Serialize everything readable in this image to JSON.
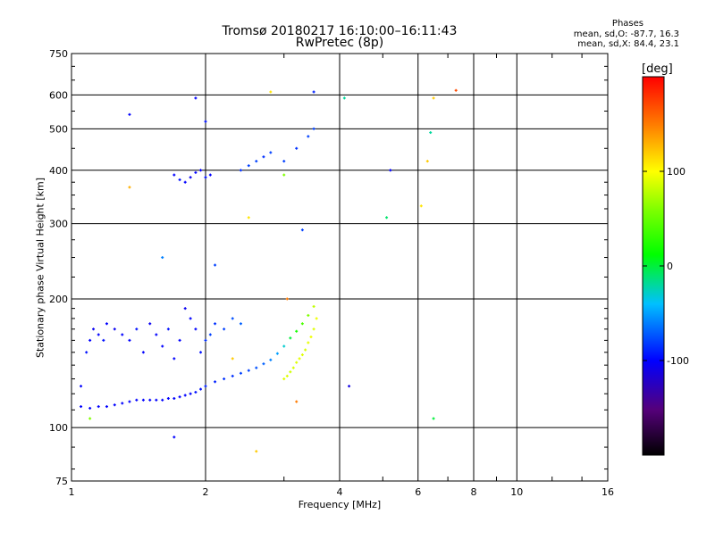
{
  "title_line1": "Tromsø 20180217 16:10:00–16:11:43",
  "title_line2": "RwPretec (8p)",
  "phase_box": {
    "heading": "Phases",
    "line_0": "mean, sd,O: -87.7, 16.3",
    "line_x": "mean, sd,X:  84.4, 23.1"
  },
  "colorbar": {
    "unit": "[deg]",
    "range": [
      -200,
      200
    ],
    "ticks": [
      100,
      0,
      -100
    ],
    "tick_labels": [
      "100",
      "0",
      "-100"
    ]
  },
  "chart_data": {
    "type": "scatter",
    "xlabel": "Frequency [MHz]",
    "ylabel": "Stationary phase Virtual Height [km]",
    "x_scale": "log",
    "y_scale": "log",
    "xlim": [
      1,
      16
    ],
    "ylim": [
      75,
      750
    ],
    "x_ticks": [
      1,
      2,
      4,
      6,
      8,
      10,
      16
    ],
    "x_tick_labels": [
      "1",
      "2",
      "4",
      "6",
      "8",
      "10",
      "16"
    ],
    "y_ticks": [
      75,
      100,
      200,
      300,
      400,
      500,
      600,
      750
    ],
    "y_tick_labels": [
      "75",
      "100",
      "200",
      "300",
      "400",
      "500",
      "600",
      "750"
    ],
    "grid": true,
    "series": [
      {
        "description": "O-mode trace",
        "x": [
          1.05,
          1.1,
          1.15,
          1.2,
          1.25,
          1.3,
          1.35,
          1.4,
          1.45,
          1.5,
          1.55,
          1.6,
          1.65,
          1.7,
          1.75,
          1.8,
          1.85,
          1.9,
          1.95,
          2.0,
          2.1,
          2.2,
          2.3,
          2.4,
          2.5,
          2.6,
          2.7,
          2.8,
          2.9,
          3.0,
          3.1,
          3.2,
          3.3,
          3.4,
          3.5
        ],
        "y": [
          112,
          111,
          112,
          112,
          113,
          114,
          115,
          116,
          116,
          116,
          116,
          116,
          117,
          117,
          118,
          119,
          120,
          121,
          123,
          125,
          128,
          130,
          132,
          134,
          136,
          138,
          141,
          144,
          149,
          155,
          162,
          168,
          175,
          183,
          192
        ],
        "phase": [
          -100,
          -100,
          -100,
          -100,
          -100,
          -100,
          -100,
          -100,
          -100,
          -100,
          -100,
          -100,
          -100,
          -100,
          -100,
          -100,
          -100,
          -95,
          -95,
          -90,
          -90,
          -85,
          -85,
          -80,
          -80,
          -75,
          -70,
          -60,
          -50,
          -30,
          0,
          20,
          40,
          60,
          80
        ]
      },
      {
        "description": "X-mode trace",
        "x": [
          3.0,
          3.05,
          3.1,
          3.15,
          3.2,
          3.25,
          3.3,
          3.35,
          3.4,
          3.45,
          3.5,
          3.55
        ],
        "y": [
          130,
          132,
          135,
          138,
          142,
          145,
          148,
          152,
          158,
          163,
          170,
          180
        ],
        "phase": [
          90,
          90,
          85,
          88,
          90,
          92,
          90,
          88,
          92,
          95,
          90,
          95
        ]
      },
      {
        "description": "Lower-frequency spread echoes",
        "x": [
          1.05,
          1.08,
          1.1,
          1.12,
          1.15,
          1.18,
          1.2,
          1.25,
          1.3,
          1.35,
          1.4,
          1.45,
          1.5,
          1.55,
          1.6,
          1.65,
          1.7,
          1.75,
          1.8,
          1.85,
          1.9,
          1.95,
          2.0,
          2.05,
          2.1,
          2.2,
          2.3,
          2.4
        ],
        "y": [
          125,
          150,
          160,
          170,
          165,
          160,
          175,
          170,
          165,
          160,
          170,
          150,
          175,
          165,
          155,
          170,
          145,
          160,
          190,
          180,
          170,
          150,
          160,
          165,
          175,
          170,
          180,
          175
        ],
        "phase": [
          -100,
          -95,
          -100,
          -105,
          -100,
          -95,
          -100,
          -105,
          -100,
          -100,
          -95,
          -100,
          -105,
          -100,
          -100,
          -95,
          -100,
          -100,
          -105,
          -100,
          -100,
          -95,
          -85,
          -80,
          -85,
          -80,
          -75,
          -70
        ]
      },
      {
        "description": "Upper echoes near 400 km",
        "x": [
          1.7,
          1.75,
          1.8,
          1.85,
          1.9,
          1.95,
          2.0,
          2.05,
          2.4,
          2.5,
          2.6,
          2.7,
          2.8,
          3.0,
          3.2,
          3.4,
          3.5
        ],
        "y": [
          390,
          380,
          375,
          385,
          395,
          400,
          385,
          390,
          400,
          410,
          420,
          430,
          440,
          420,
          450,
          480,
          500
        ],
        "phase": [
          -100,
          -95,
          -100,
          -105,
          -100,
          -100,
          -95,
          -100,
          -85,
          -80,
          -80,
          -85,
          -80,
          -80,
          -85,
          -80,
          -80
        ]
      },
      {
        "description": "Isolated points",
        "x": [
          1.1,
          1.35,
          1.6,
          1.7,
          1.9,
          2.0,
          2.1,
          2.3,
          2.5,
          2.6,
          2.8,
          3.0,
          3.05,
          3.2,
          3.3,
          3.5,
          4.1,
          4.2,
          5.2,
          5.1,
          6.1,
          6.3,
          6.5,
          6.4,
          7.3,
          6.5,
          1.35
        ],
        "y": [
          105,
          365,
          250,
          95,
          590,
          520,
          240,
          145,
          310,
          88,
          610,
          390,
          200,
          115,
          290,
          610,
          590,
          125,
          400,
          310,
          330,
          420,
          590,
          490,
          615,
          105,
          540
        ],
        "phase": [
          60,
          130,
          -60,
          -100,
          -100,
          -95,
          -80,
          120,
          110,
          120,
          110,
          60,
          150,
          150,
          -80,
          -90,
          -20,
          -110,
          -100,
          -10,
          110,
          120,
          120,
          -20,
          170,
          0,
          -100
        ]
      }
    ]
  }
}
